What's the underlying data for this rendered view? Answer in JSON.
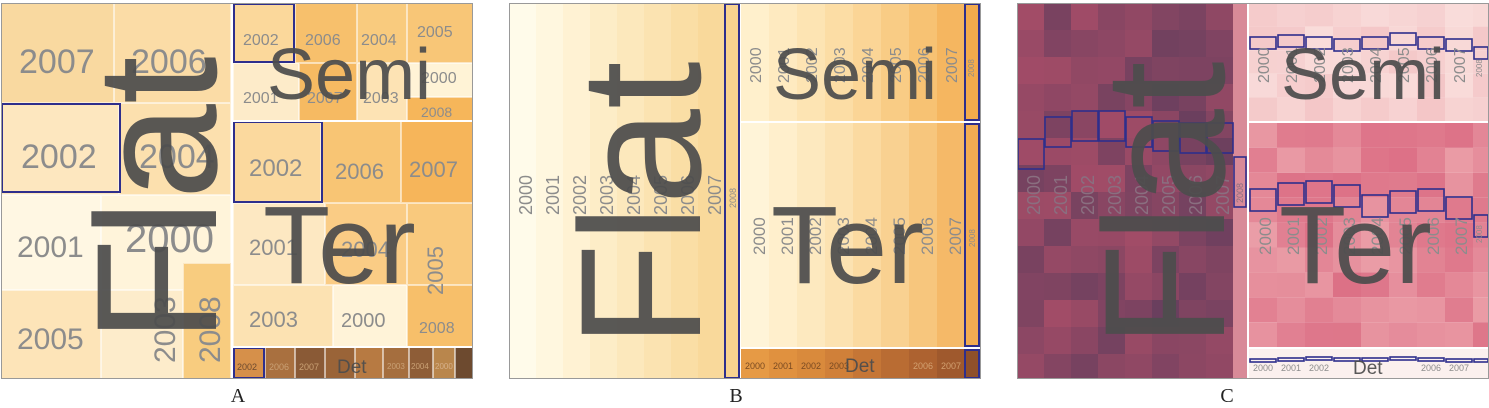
{
  "captions": [
    "A",
    "B",
    "C"
  ],
  "groups": {
    "flat": "Flat",
    "semi": "Semi",
    "ter": "Ter",
    "det": "Det"
  },
  "years": [
    "2000",
    "2001",
    "2002",
    "2003",
    "2004",
    "2005",
    "2006",
    "2007",
    "2008"
  ],
  "colors": {
    "light_cream": "#fff6dc",
    "mid_orange": "#f9cf84",
    "dark_orange": "#f4a93c",
    "brown": "#7a5535",
    "highlight_blue": "#2e2e8c",
    "pink_light": "#f6c9c9",
    "pink_mid": "#e1828e",
    "mauve_dark": "#6d3d5c"
  }
}
